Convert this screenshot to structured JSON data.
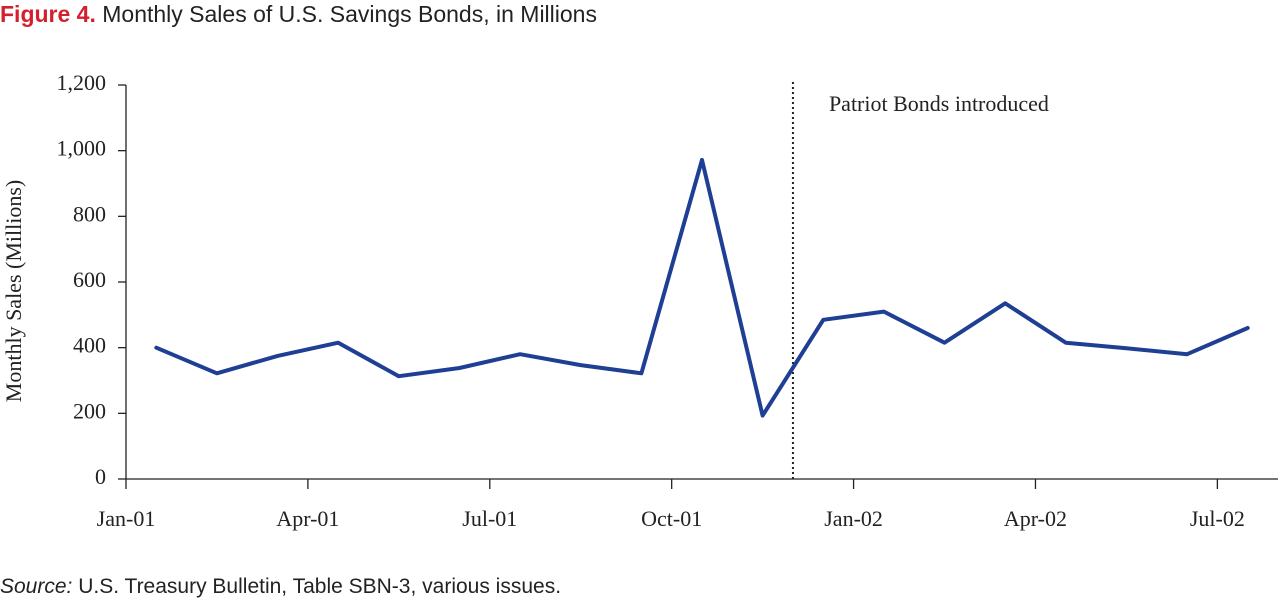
{
  "chart_data": {
    "type": "line",
    "title_prefix": "Figure 4.",
    "title": "Monthly Sales of U.S. Savings Bonds, in Millions",
    "y_label": "Monthly Sales (Millions)",
    "source_prefix": "Source:",
    "source": "U.S. Treasury Bulletin, Table SBN-3, various issues.",
    "x": [
      "2001-01",
      "2001-02",
      "2001-03",
      "2001-04",
      "2001-05",
      "2001-06",
      "2001-07",
      "2001-08",
      "2001-09",
      "2001-10",
      "2001-11",
      "2001-12",
      "2002-01",
      "2002-02",
      "2002-03",
      "2002-04",
      "2002-05",
      "2002-06",
      "2002-07"
    ],
    "values": [
      400,
      322,
      375,
      415,
      313,
      338,
      380,
      347,
      322,
      972,
      193,
      485,
      510,
      415,
      535,
      415,
      398,
      380,
      460
    ],
    "color": "#1f3f94",
    "xlim": [
      "2001-01",
      "2002-08"
    ],
    "xticks": [
      {
        "value": "2001-01",
        "label": "Jan-01"
      },
      {
        "value": "2001-04",
        "label": "Apr-01"
      },
      {
        "value": "2001-07",
        "label": "Jul-01"
      },
      {
        "value": "2001-10",
        "label": "Oct-01"
      },
      {
        "value": "2002-01",
        "label": "Jan-02"
      },
      {
        "value": "2002-04",
        "label": "Apr-02"
      },
      {
        "value": "2002-07",
        "label": "Jul-02"
      }
    ],
    "ylim": [
      0,
      1200
    ],
    "yticks": [
      0,
      200,
      400,
      600,
      800,
      {
        "value": 1000,
        "label": "1,000"
      },
      {
        "value": 1200,
        "label": "1,200"
      }
    ],
    "annotations": [
      {
        "text": "Patriot Bonds introduced",
        "x": "2001-12"
      }
    ]
  }
}
